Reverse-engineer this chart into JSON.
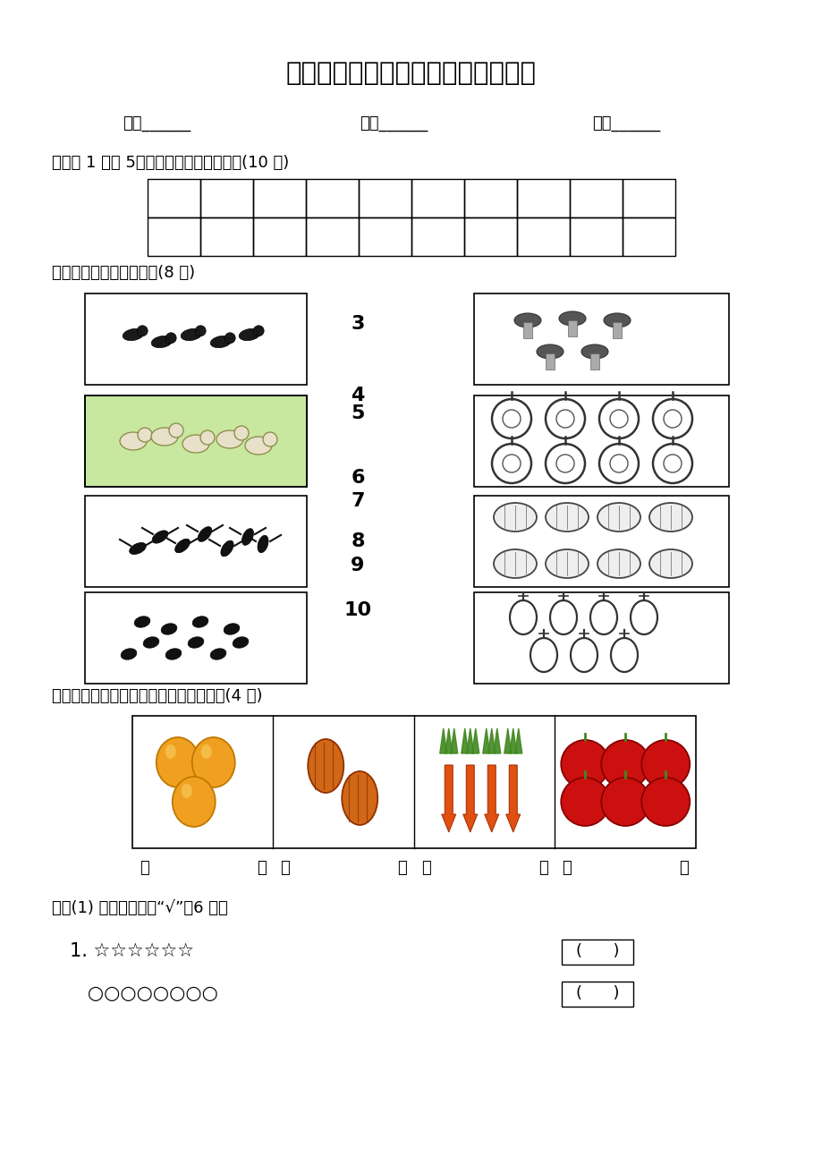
{
  "title": "光谷三小一年级数学学情反馈（一）",
  "bg_color": "#ffffff",
  "header_items": [
    "班级______",
    "姓名______",
    "成绩______"
  ],
  "section1_label": "一、从 1 写到 5，看谁写得认真、漂亮。(10 分)",
  "section2_label": "二、先数一数，再连线。(8 分)",
  "section3_label": "三、数一数，用自己喜欢的方法画一画。(4 分)",
  "section4_label": "四、(1) 在多的后面画“√”（6 分）",
  "numbers_list": [
    "3",
    "4",
    "5",
    "6",
    "7",
    "8",
    "9",
    "10"
  ],
  "q4_line1": "1. ☆☆☆☆☆☆",
  "q4_line2": "   ○○○○○○○○",
  "q4_bracket": "(　　　)"
}
